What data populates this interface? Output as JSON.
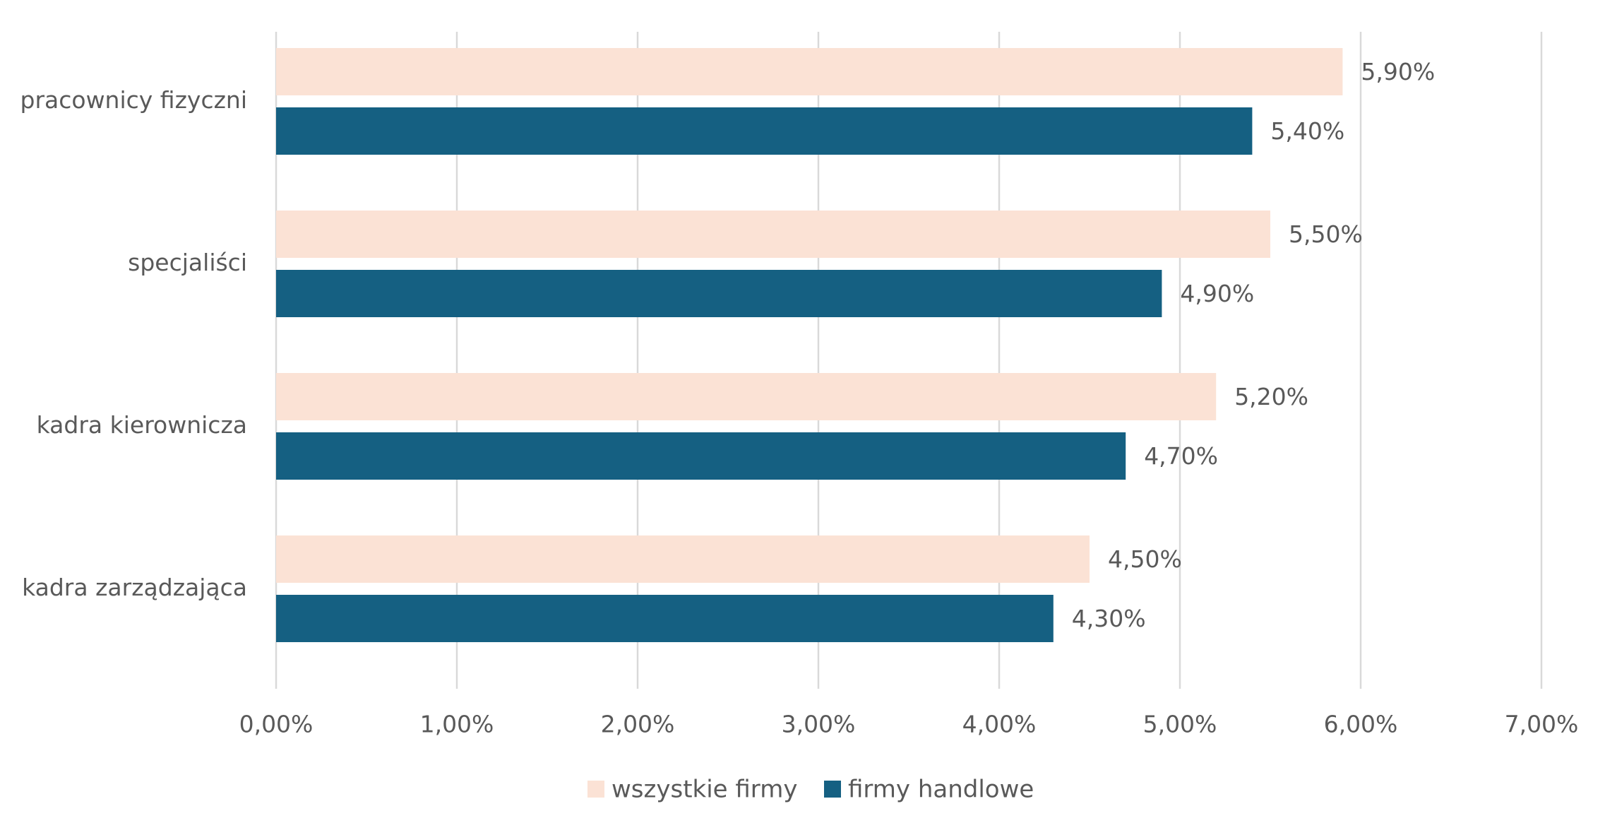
{
  "chart_data": {
    "type": "bar",
    "orientation": "horizontal",
    "categories": [
      "pracownicy fizyczni",
      "specjaliści",
      "kadra kierownicza",
      "kadra zarządzająca"
    ],
    "series": [
      {
        "name": "wszystkie firmy",
        "color": "#fbe2d5",
        "values": [
          5.9,
          5.5,
          5.2,
          4.5
        ],
        "labels": [
          "5,90%",
          "5,50%",
          "5,20%",
          "4,50%"
        ]
      },
      {
        "name": "firmy handlowe",
        "color": "#156082",
        "values": [
          5.4,
          4.9,
          4.7,
          4.3
        ],
        "labels": [
          "5,40%",
          "4,90%",
          "4,70%",
          "4,30%"
        ]
      }
    ],
    "xlim": [
      0,
      7
    ],
    "xticks": [
      0,
      1,
      2,
      3,
      4,
      5,
      6,
      7
    ],
    "xtick_labels": [
      "0,00%",
      "1,00%",
      "2,00%",
      "3,00%",
      "4,00%",
      "5,00%",
      "6,00%",
      "7,00%"
    ],
    "title": "",
    "xlabel": "",
    "ylabel": "",
    "grid": "vertical",
    "legend_position": "bottom-center",
    "gridline_color": "#d9d9d9",
    "text_color": "#595959"
  }
}
